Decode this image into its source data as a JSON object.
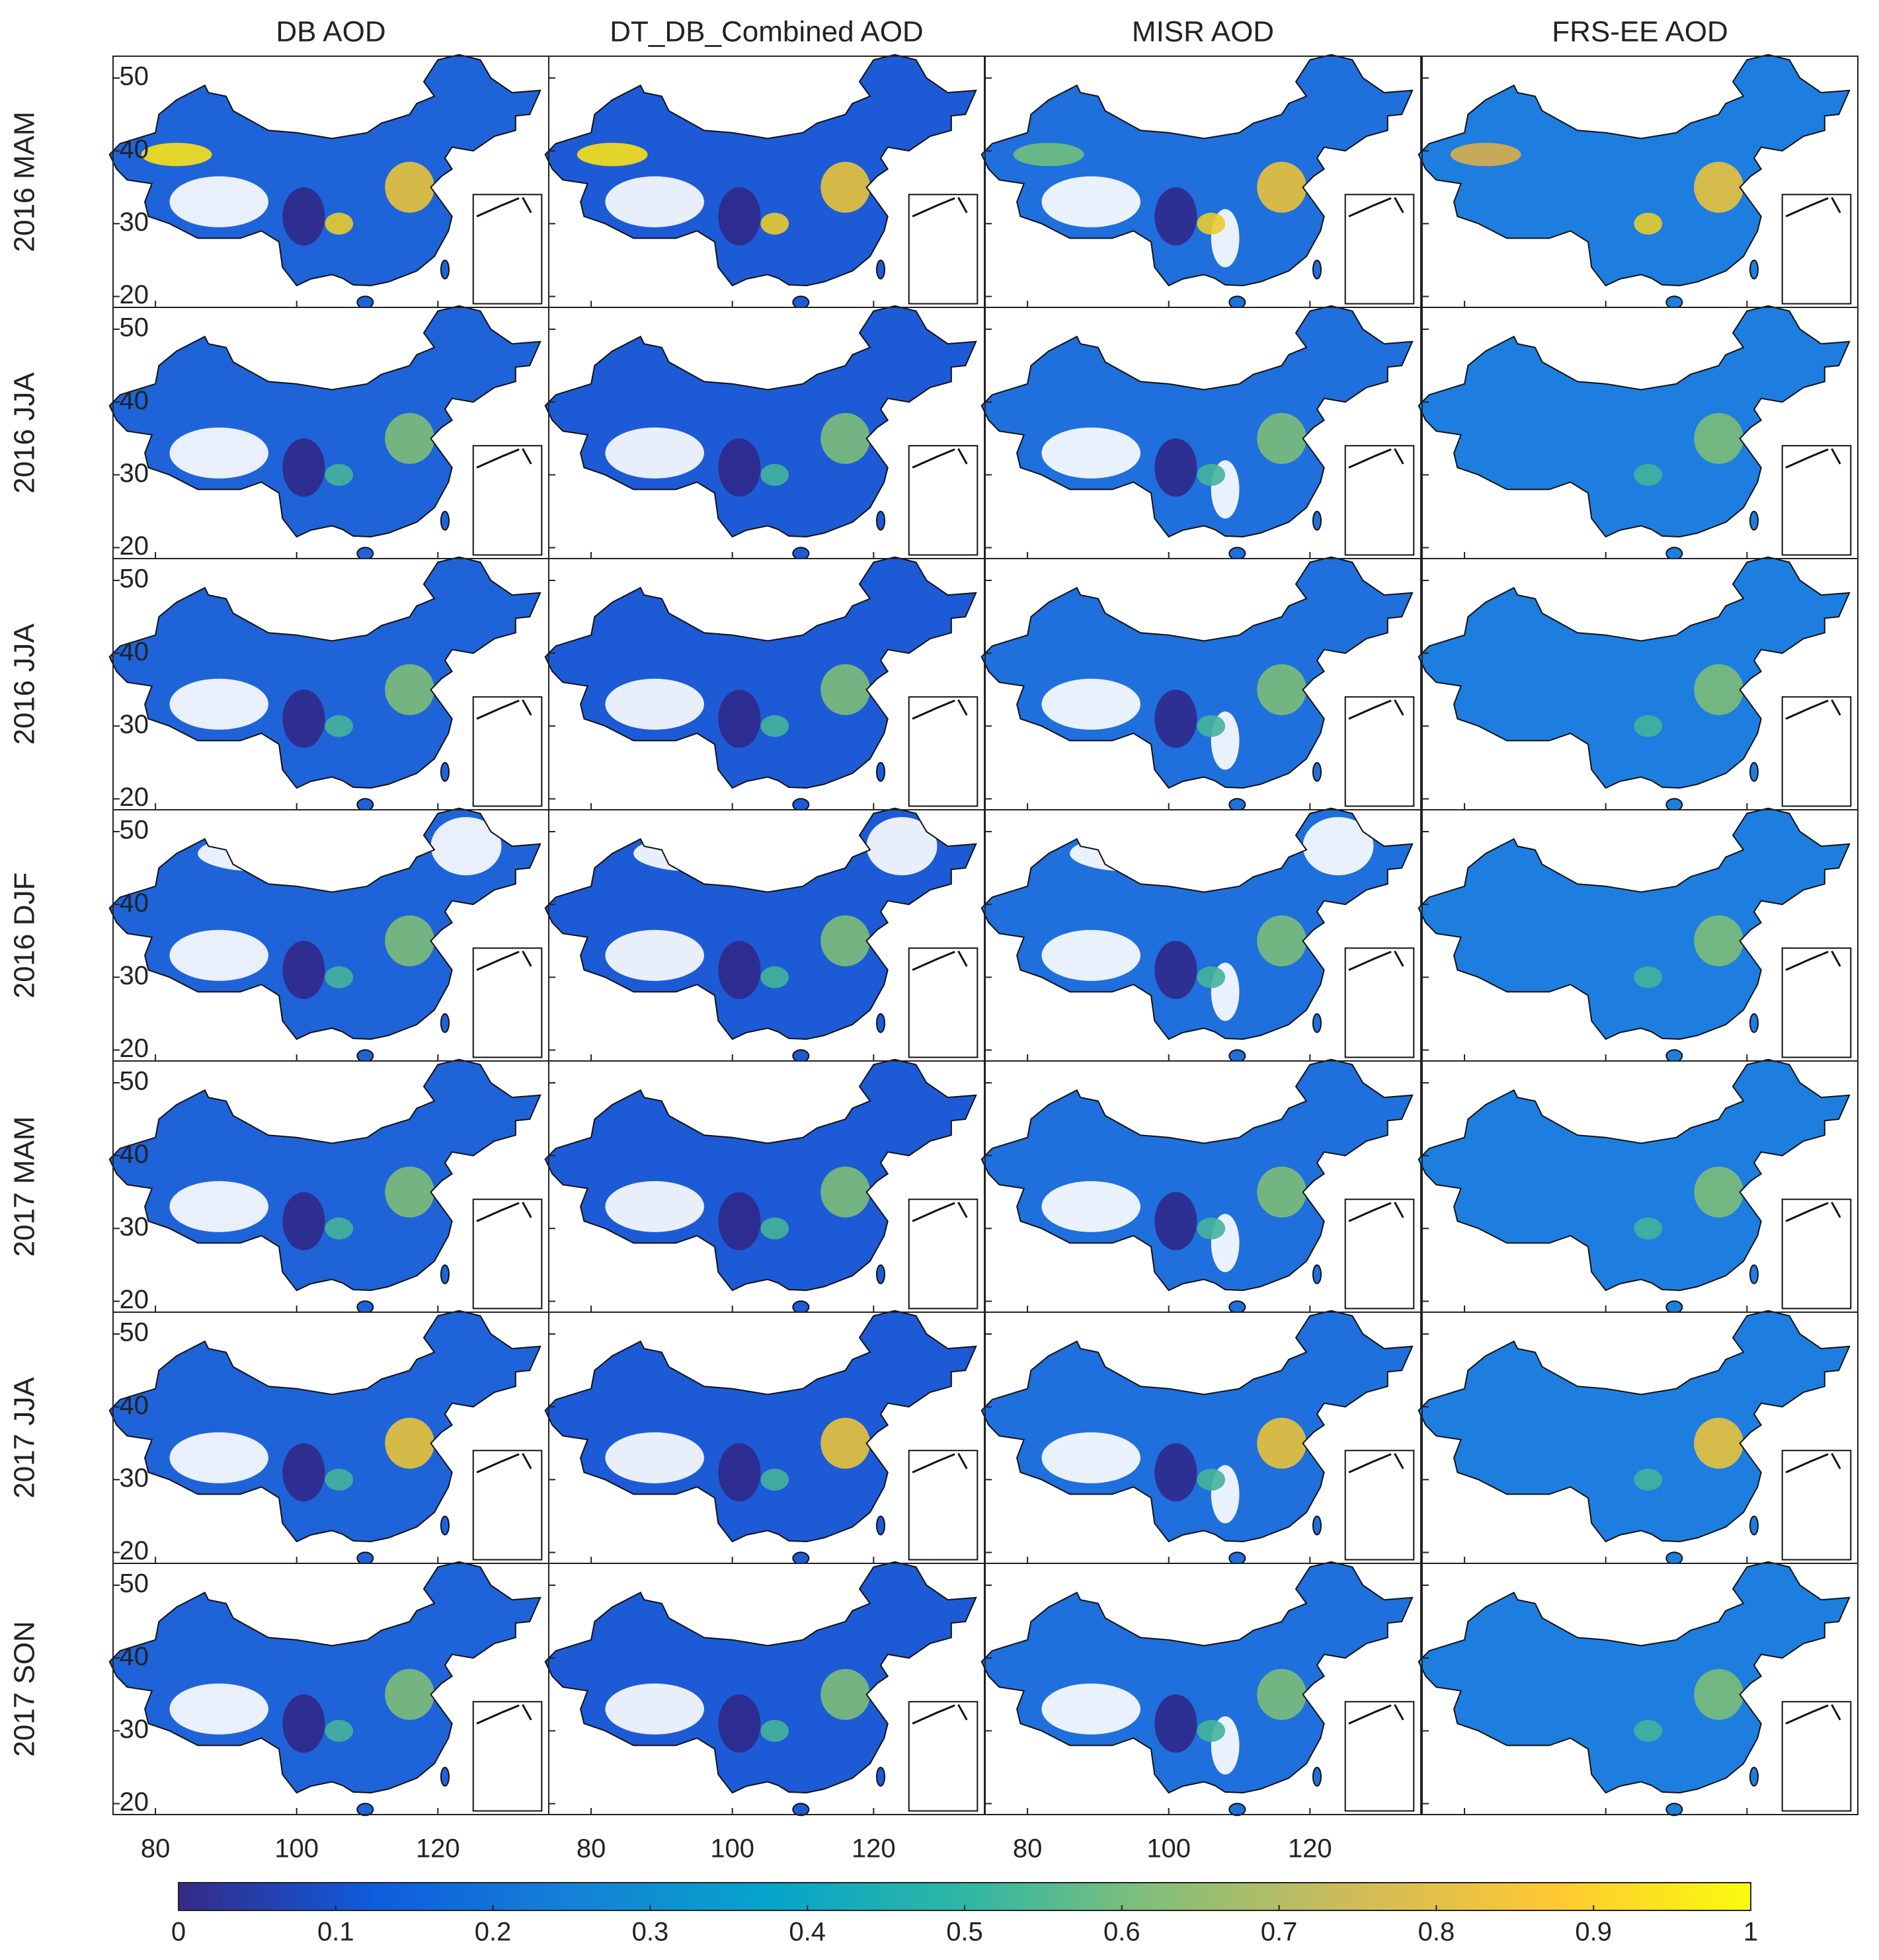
{
  "columns": [
    "DB AOD",
    "DT_DB_Combined AOD",
    "MISR AOD",
    "FRS-EE AOD"
  ],
  "rows": [
    "2016 MAM",
    "2016 JJA",
    "2016 JJA",
    "2016 DJF",
    "2017 MAM",
    "2017 JJA",
    "2017 SON"
  ],
  "axes": {
    "xlim": [
      74,
      135.7
    ],
    "ylim": [
      18.5,
      53
    ],
    "xticks": [
      80,
      100,
      120
    ],
    "yticks": [
      20,
      30,
      40,
      50
    ]
  },
  "colorbar": {
    "lim": [
      0,
      1
    ],
    "ticks": [
      0,
      0.1,
      0.2,
      0.3,
      0.4,
      0.5,
      0.6,
      0.7,
      0.8,
      0.9,
      1
    ],
    "colors": [
      "#352a87",
      "#0f5cdd",
      "#1481d6",
      "#06a4ca",
      "#2eb7a4",
      "#87bf77",
      "#d1bb59",
      "#fec832",
      "#f9fb0e"
    ]
  }
}
